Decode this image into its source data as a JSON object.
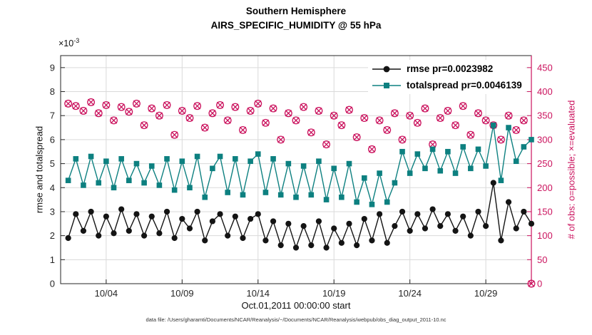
{
  "title_line1": "Southern Hemisphere",
  "title_line2": "AIRS_SPECIFIC_HUMIDITY @ 55 hPa",
  "caption": "data file: /Users/gharamti/Documents/NCAR/Reanalysis/~/Documents/NCAR/Reanalysis/webpub/obs_diag_output_2011-10.nc",
  "left_axis_scale": {
    "base": "×10",
    "exp": "-3"
  },
  "chart_data": {
    "type": "line",
    "title": "Southern Hemisphere — AIRS_SPECIFIC_HUMIDITY @ 55 hPa",
    "xlabel": "Oct.01,2011 00:00:00 start",
    "ylabel_left": "rmse and totalspread",
    "ylabel_right": "# of obs: o=possible; ×=evaluated",
    "grid": true,
    "xlim": [
      0,
      31
    ],
    "ylim_left": [
      0,
      9.5
    ],
    "ylim_right": [
      0,
      475
    ],
    "left_scale_factor": "1e-3",
    "xticks": [
      {
        "v": 3,
        "label": "10/04"
      },
      {
        "v": 8,
        "label": "10/09"
      },
      {
        "v": 13,
        "label": "10/14"
      },
      {
        "v": 18,
        "label": "10/19"
      },
      {
        "v": 23,
        "label": "10/24"
      },
      {
        "v": 28,
        "label": "10/29"
      }
    ],
    "yticks_left": [
      0,
      1,
      2,
      3,
      4,
      5,
      6,
      7,
      8,
      9
    ],
    "yticks_right": [
      0,
      50,
      100,
      150,
      200,
      250,
      300,
      350,
      400,
      450
    ],
    "colors": {
      "rmse": "#141414",
      "totalspread": "#0d8080",
      "obs": "#cb135e",
      "grid": "#dadada",
      "axis": "#262626"
    },
    "legend": [
      {
        "label": "rmse pr=0.0023982",
        "series": "rmse"
      },
      {
        "label": "totalspread pr=0.0046139",
        "series": "totalspread"
      }
    ],
    "x": [
      0.5,
      1,
      1.5,
      2,
      2.5,
      3,
      3.5,
      4,
      4.5,
      5,
      5.5,
      6,
      6.5,
      7,
      7.5,
      8,
      8.5,
      9,
      9.5,
      10,
      10.5,
      11,
      11.5,
      12,
      12.5,
      13,
      13.5,
      14,
      14.5,
      15,
      15.5,
      16,
      16.5,
      17,
      17.5,
      18,
      18.5,
      19,
      19.5,
      20,
      20.5,
      21,
      21.5,
      22,
      22.5,
      23,
      23.5,
      24,
      24.5,
      25,
      25.5,
      26,
      26.5,
      27,
      27.5,
      28,
      28.5,
      29,
      29.5,
      30,
      30.5,
      31
    ],
    "series": [
      {
        "name": "rmse",
        "axis": "left",
        "marker": "filled-circle",
        "values": [
          1.9,
          2.9,
          2.2,
          3.0,
          2.0,
          2.8,
          2.1,
          3.1,
          2.2,
          2.9,
          2.0,
          2.8,
          2.1,
          3.0,
          1.9,
          2.7,
          2.3,
          3.0,
          1.8,
          2.6,
          2.9,
          2.0,
          2.8,
          1.9,
          2.7,
          2.9,
          1.8,
          2.6,
          1.6,
          2.5,
          1.5,
          2.4,
          1.6,
          2.6,
          1.5,
          2.3,
          1.7,
          2.5,
          1.6,
          2.7,
          1.8,
          2.9,
          1.7,
          2.4,
          3.0,
          2.2,
          2.9,
          2.3,
          3.1,
          2.4,
          2.9,
          2.2,
          2.8,
          2.0,
          3.0,
          2.4,
          4.2,
          1.8,
          3.4,
          2.3,
          3.0,
          2.5
        ]
      },
      {
        "name": "totalspread",
        "axis": "left",
        "marker": "filled-square",
        "values": [
          4.3,
          5.2,
          4.1,
          5.3,
          4.2,
          5.1,
          4.0,
          5.2,
          4.3,
          5.0,
          4.2,
          4.9,
          4.1,
          5.2,
          3.9,
          5.1,
          4.0,
          5.3,
          3.6,
          4.8,
          5.3,
          3.8,
          5.2,
          3.7,
          5.1,
          5.4,
          3.8,
          5.2,
          3.7,
          5.0,
          3.6,
          4.9,
          3.7,
          5.1,
          3.5,
          4.8,
          3.6,
          5.0,
          3.4,
          4.4,
          3.3,
          4.6,
          3.4,
          4.2,
          5.5,
          4.6,
          5.4,
          4.8,
          5.6,
          4.7,
          5.5,
          4.6,
          5.7,
          4.8,
          5.6,
          4.9,
          6.6,
          4.3,
          6.5,
          5.1,
          5.7,
          6.0
        ]
      },
      {
        "name": "obs_possible",
        "axis": "right",
        "marker": "open-circle",
        "values": [
          375,
          370,
          360,
          378,
          355,
          372,
          340,
          368,
          358,
          375,
          330,
          365,
          350,
          372,
          310,
          360,
          345,
          370,
          325,
          355,
          372,
          340,
          368,
          320,
          360,
          375,
          335,
          365,
          300,
          355,
          340,
          368,
          315,
          360,
          290,
          350,
          330,
          362,
          305,
          345,
          280,
          340,
          320,
          355,
          300,
          350,
          335,
          365,
          290,
          345,
          360,
          330,
          370,
          310,
          355,
          340,
          330,
          300,
          350,
          320,
          340,
          0
        ]
      },
      {
        "name": "obs_evaluated",
        "axis": "right",
        "marker": "cross",
        "values": [
          375,
          370,
          360,
          378,
          355,
          372,
          340,
          368,
          358,
          375,
          330,
          365,
          350,
          372,
          310,
          360,
          345,
          370,
          325,
          355,
          372,
          340,
          368,
          320,
          360,
          375,
          335,
          365,
          300,
          355,
          340,
          368,
          315,
          360,
          290,
          350,
          330,
          362,
          305,
          345,
          280,
          340,
          320,
          355,
          300,
          350,
          335,
          365,
          290,
          345,
          360,
          330,
          370,
          310,
          355,
          340,
          330,
          300,
          350,
          320,
          340,
          0
        ]
      }
    ]
  }
}
